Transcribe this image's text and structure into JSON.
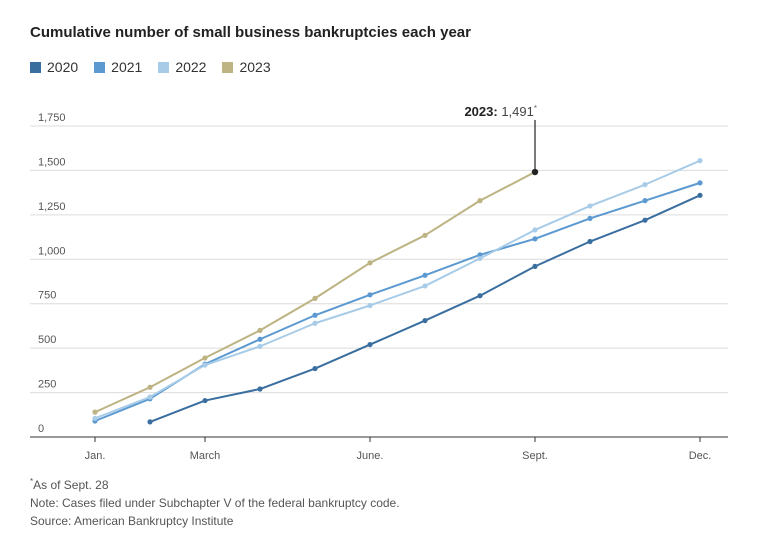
{
  "chart_data": {
    "type": "line",
    "title": "Cumulative number of small business bankruptcies each year",
    "x_tick_labels": [
      {
        "month": 1,
        "label": "Jan."
      },
      {
        "month": 3,
        "label": "March"
      },
      {
        "month": 6,
        "label": "June."
      },
      {
        "month": 9,
        "label": "Sept."
      },
      {
        "month": 12,
        "label": "Dec."
      }
    ],
    "y_ticks": [
      0,
      250,
      500,
      750,
      1000,
      1250,
      1500,
      1750
    ],
    "y_tick_labels": [
      "0",
      "250",
      "500",
      "750",
      "1,000",
      "1,250",
      "1,500",
      "1,750"
    ],
    "ylim": [
      0,
      1750
    ],
    "xlim": [
      1,
      12
    ],
    "grid": true,
    "legend": "top-left",
    "series": [
      {
        "name": "2020",
        "color": "#3a6e9f",
        "x": [
          2,
          3,
          4,
          5,
          6,
          7,
          8,
          9,
          10,
          11,
          12
        ],
        "values": [
          85,
          205,
          270,
          385,
          520,
          655,
          795,
          960,
          1100,
          1220,
          1360
        ]
      },
      {
        "name": "2021",
        "color": "#5b99d0",
        "x": [
          1,
          2,
          3,
          4,
          5,
          6,
          7,
          8,
          9,
          10,
          11,
          12
        ],
        "values": [
          90,
          215,
          410,
          550,
          685,
          800,
          910,
          1025,
          1115,
          1230,
          1330,
          1430
        ]
      },
      {
        "name": "2022",
        "color": "#a8cce8",
        "x": [
          1,
          2,
          3,
          4,
          5,
          6,
          7,
          8,
          9,
          10,
          11,
          12
        ],
        "values": [
          105,
          225,
          405,
          510,
          640,
          740,
          850,
          1005,
          1165,
          1300,
          1420,
          1555
        ]
      },
      {
        "name": "2023",
        "color": "#bdb383",
        "x": [
          1,
          2,
          3,
          4,
          5,
          6,
          7,
          8,
          9
        ],
        "values": [
          140,
          280,
          445,
          600,
          780,
          980,
          1135,
          1330,
          1491
        ]
      }
    ],
    "annotation": {
      "series": "2023",
      "bold": "2023:",
      "value": "1,491",
      "mark": "*"
    }
  },
  "footnotes": {
    "asterisk": "*",
    "as_of": "As of Sept. 28",
    "note": "Note: Cases filed under Subchapter V of the federal bankruptcy code.",
    "source": "Source: American Bankruptcy Institute"
  }
}
